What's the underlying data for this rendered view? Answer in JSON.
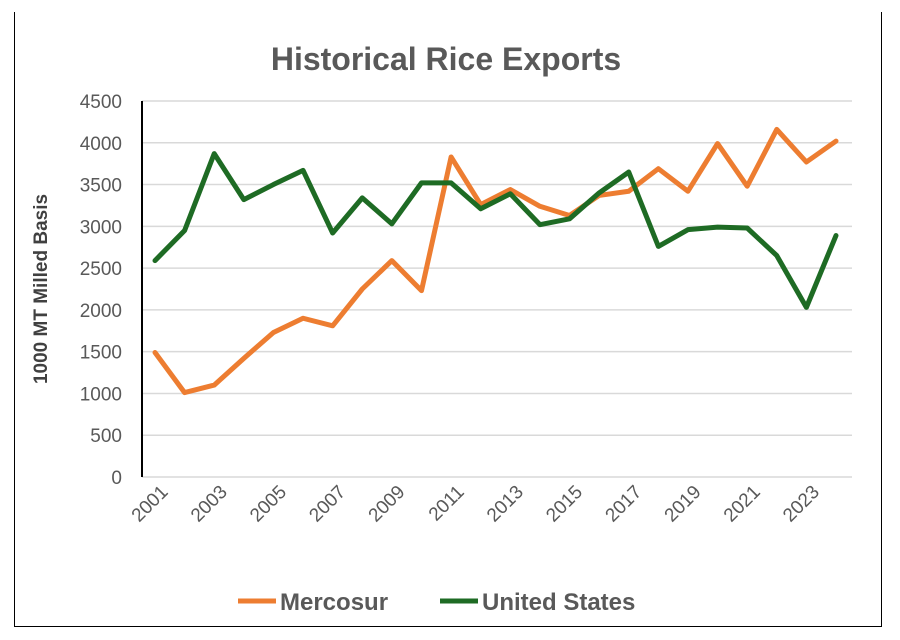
{
  "chart_data": {
    "type": "line",
    "title": "Historical Rice Exports",
    "xlabel": "",
    "ylabel": "1000 MT Milled Basis",
    "ylim": [
      0,
      4500
    ],
    "yticks": [
      0,
      500,
      1000,
      1500,
      2000,
      2500,
      3000,
      3500,
      4000,
      4500
    ],
    "x": [
      2001,
      2002,
      2003,
      2004,
      2005,
      2006,
      2007,
      2008,
      2009,
      2010,
      2011,
      2012,
      2013,
      2014,
      2015,
      2016,
      2017,
      2018,
      2019,
      2020,
      2021,
      2022,
      2023,
      2024
    ],
    "xtick_labels": [
      "2001",
      "2003",
      "2005",
      "2007",
      "2009",
      "2011",
      "2013",
      "2015",
      "2017",
      "2019",
      "2021",
      "2023"
    ],
    "grid": true,
    "legend_position": "bottom",
    "series": [
      {
        "name": "Mercosur",
        "color": "#ED7D31",
        "values": [
          1490,
          1010,
          1100,
          1420,
          1730,
          1900,
          1810,
          2250,
          2590,
          2230,
          3830,
          3260,
          3440,
          3240,
          3130,
          3370,
          3420,
          3690,
          3420,
          3990,
          3480,
          4160,
          3770,
          4020
        ]
      },
      {
        "name": "United States",
        "color": "#1E6B24",
        "values": [
          2590,
          2950,
          3870,
          3320,
          3500,
          3670,
          2920,
          3340,
          3030,
          3520,
          3520,
          3210,
          3390,
          3020,
          3090,
          3400,
          3650,
          2760,
          2960,
          2990,
          2980,
          2650,
          2030,
          2890
        ]
      }
    ]
  }
}
